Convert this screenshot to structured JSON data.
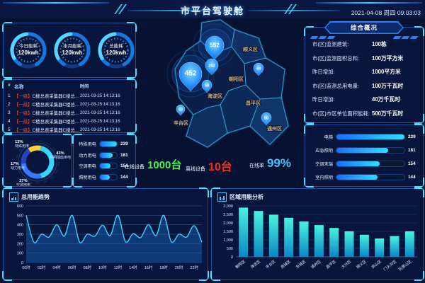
{
  "header": {
    "title": "市平台驾驶舱",
    "datetime": "2021-04-08 周四 09:03:03"
  },
  "gauges": [
    {
      "label": "今日能耗",
      "value": "120kwh"
    },
    {
      "label": "本月能耗",
      "value": "120kwh"
    },
    {
      "label": "总能耗",
      "value": "120kwh"
    }
  ],
  "alarm_table": {
    "columns": [
      "#",
      "名称",
      "时间"
    ],
    "rows": [
      {
        "idx": "1",
        "tag": "【一级】",
        "name": "C楼总表采集器C楼总表...",
        "time": "2021-03-25 14:13:16"
      },
      {
        "idx": "2",
        "tag": "【一级】",
        "name": "C楼总表采集器C楼总表...",
        "time": "2021-03-25 14:13:16"
      },
      {
        "idx": "3",
        "tag": "【一级】",
        "name": "C楼总表采集器C楼总表...",
        "time": "2021-03-25 14:13:16"
      },
      {
        "idx": "4",
        "tag": "【一级】",
        "name": "C楼总表采集器C楼总表...",
        "time": "2021-03-25 14:13:16"
      },
      {
        "idx": "5",
        "tag": "【一级】",
        "name": "C楼总表采集器C楼总表...",
        "time": "2021-03-25 14:13:16"
      }
    ]
  },
  "left_bars": {
    "items": [
      {
        "label": "特殊用电",
        "value": 239
      },
      {
        "label": "动力用电",
        "value": 181
      },
      {
        "label": "空调用电",
        "value": 154
      },
      {
        "label": "照明用电",
        "value": 144
      }
    ]
  },
  "right_bars": {
    "items": [
      {
        "label": "电梯",
        "value": 239
      },
      {
        "label": "应急照明",
        "value": 181
      },
      {
        "label": "空调末端",
        "value": 154
      },
      {
        "label": "室内照明",
        "value": 144
      }
    ]
  },
  "overview": {
    "title": "综合概况",
    "rows": [
      {
        "label": "市(区)监测建筑:",
        "value": "100栋"
      },
      {
        "label": "市(区)监测面积总和:",
        "value": "100万平方米"
      },
      {
        "label": "昨日增加:",
        "value": "1000平方米"
      },
      {
        "label": "市(区)监测总用电量:",
        "value": "100万千瓦时"
      },
      {
        "label": "昨日增加:",
        "value": "40万千瓦时"
      },
      {
        "label": "市(区)市区单位面积能耗:",
        "value": "500万千瓦时"
      }
    ]
  },
  "stats": [
    {
      "label": "在线设备",
      "value": "1000台",
      "color": "#46f54a",
      "size": 15
    },
    {
      "label": "离线设备",
      "value": "10台",
      "color": "#ff2a1e",
      "size": 16
    },
    {
      "label": "在线率",
      "value": "99%",
      "color": "#3fc9ff",
      "size": 17
    }
  ],
  "map": {
    "markers": [
      {
        "value": "552"
      },
      {
        "value": "452"
      },
      {
        "value": "252"
      },
      {
        "value": "58"
      },
      {
        "value": "44"
      },
      {
        "value": "50"
      },
      {
        "value": "53"
      }
    ],
    "labels": [
      "顺义区",
      "朝阳区",
      "海淀区",
      "丰台区",
      "通州区",
      "昌平区"
    ]
  },
  "chart_data": [
    {
      "type": "pie",
      "name": "用电结构占比",
      "labels": [
        "特殊用电",
        "照明插座用电",
        "空调用电",
        "动力用电"
      ],
      "values": [
        13,
        43,
        27,
        17
      ],
      "unit": "%",
      "colors": [
        "#ffd32e",
        "#2fd8ff",
        "#2e7bff",
        "#2443c8"
      ],
      "legend_position": "around"
    },
    {
      "type": "line",
      "title": "总用能趋势",
      "x_tick_labels": [
        "00时",
        "02时",
        "04时",
        "06时",
        "08时",
        "10时",
        "12时",
        "14时",
        "16时",
        "18时",
        "20时",
        "22时"
      ],
      "values": [
        500,
        215,
        300,
        270,
        400,
        280,
        500,
        215,
        300,
        280,
        395,
        285,
        500,
        220,
        305,
        265,
        400,
        285,
        500,
        220,
        300,
        270,
        390,
        215
      ],
      "ylim": [
        0,
        600
      ],
      "ytick_step": 100,
      "grid": true,
      "line_color": "#3fd2ff"
    },
    {
      "type": "bar",
      "title": "区域用能分析",
      "categories": [
        "朝阳区",
        "海淀区",
        "丰台区",
        "西城区",
        "东城区",
        "通州区",
        "昌平区",
        "大兴区",
        "顺义区",
        "房山区",
        "门头沟区",
        "石景山区"
      ],
      "values": [
        2900,
        2700,
        2480,
        2300,
        2080,
        1870,
        1700,
        1500,
        1300,
        1080,
        1220,
        1500
      ],
      "ylim": [
        0,
        3000
      ],
      "ytick_step": 500,
      "bar_colors": [
        "#49f2dd",
        "#0c86c8"
      ]
    }
  ]
}
